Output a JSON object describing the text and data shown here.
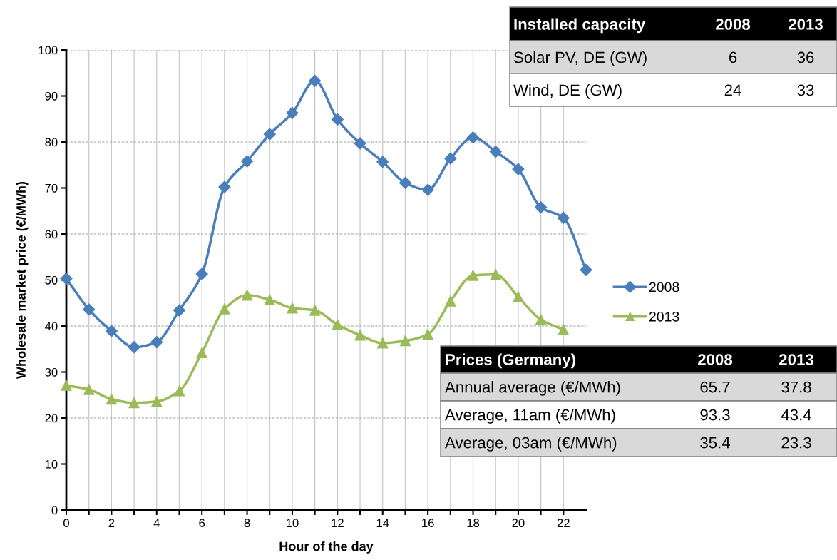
{
  "chart_data": {
    "type": "line",
    "xlabel": "Hour of the day",
    "ylabel": "Wholesale market price (€/MWh)",
    "x": [
      0,
      1,
      2,
      3,
      4,
      5,
      6,
      7,
      8,
      9,
      10,
      11,
      12,
      13,
      14,
      15,
      16,
      17,
      18,
      19,
      20,
      21,
      22,
      23
    ],
    "series": [
      {
        "name": "2008",
        "color": "#4a7ebb",
        "marker": "diamond",
        "values": [
          50.3,
          43.6,
          38.9,
          35.4,
          36.5,
          43.4,
          51.3,
          70.2,
          75.8,
          81.7,
          86.3,
          93.3,
          84.9,
          79.7,
          75.7,
          71.1,
          69.6,
          76.4,
          81.0,
          77.9,
          74.1,
          65.8,
          63.5,
          52.2
        ]
      },
      {
        "name": "2013",
        "color": "#9bbb59",
        "marker": "triangle",
        "values": [
          27.1,
          26.2,
          24.1,
          23.3,
          23.6,
          25.9,
          34.2,
          43.7,
          46.7,
          45.7,
          43.9,
          43.4,
          40.3,
          38.0,
          36.3,
          36.8,
          38.2,
          45.4,
          51.0,
          51.2,
          46.3,
          41.4,
          39.2,
          null
        ]
      }
    ],
    "xlim": [
      0,
      23
    ],
    "xticks": [
      0,
      {
        "value": 1,
        "label": null
      },
      2,
      {
        "value": 3,
        "label": null
      },
      4,
      {
        "value": 5,
        "label": null
      },
      6,
      {
        "value": 7,
        "label": null
      },
      8,
      {
        "value": 9,
        "label": null
      },
      10,
      {
        "value": 11,
        "label": null
      },
      12,
      {
        "value": 13,
        "label": null
      },
      14,
      {
        "value": 15,
        "label": null
      },
      16,
      {
        "value": 17,
        "label": null
      },
      18,
      {
        "value": 19,
        "label": null
      },
      20,
      {
        "value": 21,
        "label": null
      },
      22
    ],
    "ylim": [
      0,
      100
    ],
    "yticks": [
      0,
      10,
      20,
      30,
      40,
      50,
      60,
      70,
      80,
      90,
      100
    ],
    "grid": true,
    "legend": "right",
    "line_style": "solid",
    "annotations": [
      "Installed capacity",
      "2008",
      "2013",
      "Solar PV, DE (GW)",
      "6",
      "36",
      "Wind, DE (GW)",
      "24",
      "33",
      "Prices (Germany)",
      "2008",
      "2013",
      "Annual average (€/MWh)",
      "65.7",
      "37.8",
      "Average, 11am (€/MWh)",
      "93.3",
      "43.4",
      "Average, 03am (€/MWh)",
      "35.4",
      "23.3"
    ]
  }
}
